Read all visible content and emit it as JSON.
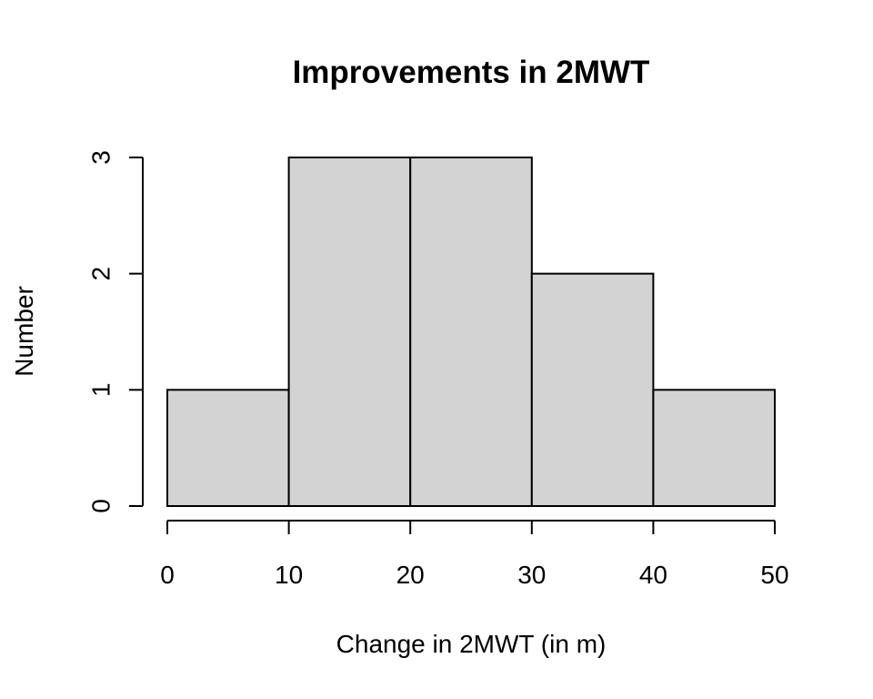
{
  "chart_data": {
    "type": "bar",
    "subtype": "histogram",
    "title": "Improvements in 2MWT",
    "xlabel": "Change in 2MWT (in m)",
    "ylabel": "Number",
    "bins": [
      {
        "start": 0,
        "end": 10,
        "count": 1
      },
      {
        "start": 10,
        "end": 20,
        "count": 3
      },
      {
        "start": 20,
        "end": 30,
        "count": 3
      },
      {
        "start": 30,
        "end": 40,
        "count": 2
      },
      {
        "start": 40,
        "end": 50,
        "count": 1
      }
    ],
    "xlim": [
      0,
      50
    ],
    "ylim": [
      0,
      3
    ],
    "x_ticks": [
      "0",
      "10",
      "20",
      "30",
      "40",
      "50"
    ],
    "y_ticks": [
      "0",
      "1",
      "2",
      "3"
    ],
    "bar_color": "#d3d3d3",
    "edge_color": "#000000",
    "grid": false,
    "legend": "none"
  }
}
